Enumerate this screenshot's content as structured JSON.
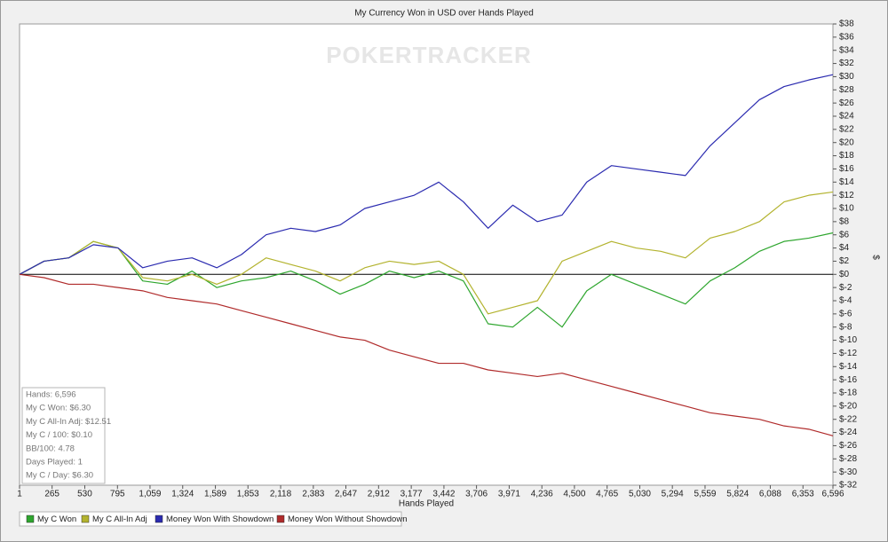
{
  "chart_data": {
    "type": "line",
    "title": "My Currency Won in USD over Hands Played",
    "watermark": "POKERTRACKER",
    "x_label": "Hands Played",
    "y_label": "$",
    "xlim": [
      1,
      6596
    ],
    "ylim": [
      -32,
      38
    ],
    "xticks": [
      1,
      265,
      530,
      795,
      {
        "value": 1059,
        "label": "1,059"
      },
      {
        "value": 1324,
        "label": "1,324"
      },
      {
        "value": 1589,
        "label": "1,589"
      },
      {
        "value": 1853,
        "label": "1,853"
      },
      {
        "value": 2118,
        "label": "2,118"
      },
      {
        "value": 2383,
        "label": "2,383"
      },
      {
        "value": 2647,
        "label": "2,647"
      },
      {
        "value": 2912,
        "label": "2,912"
      },
      {
        "value": 3177,
        "label": "3,177"
      },
      {
        "value": 3442,
        "label": "3,442"
      },
      {
        "value": 3706,
        "label": "3,706"
      },
      {
        "value": 3971,
        "label": "3,971"
      },
      {
        "value": 4236,
        "label": "4,236"
      },
      {
        "value": 4500,
        "label": "4,500"
      },
      {
        "value": 4765,
        "label": "4,765"
      },
      {
        "value": 5030,
        "label": "5,030"
      },
      {
        "value": 5294,
        "label": "5,294"
      },
      {
        "value": 5559,
        "label": "5,559"
      },
      {
        "value": 5824,
        "label": "5,824"
      },
      {
        "value": 6088,
        "label": "6,088"
      },
      {
        "value": 6353,
        "label": "6,353"
      },
      {
        "value": 6596,
        "label": "6,596"
      }
    ],
    "yticks": [
      {
        "value": -32,
        "label": "$-32"
      },
      {
        "value": -30,
        "label": "$-30"
      },
      {
        "value": -28,
        "label": "$-28"
      },
      {
        "value": -26,
        "label": "$-26"
      },
      {
        "value": -24,
        "label": "$-24"
      },
      {
        "value": -22,
        "label": "$-22"
      },
      {
        "value": -20,
        "label": "$-20"
      },
      {
        "value": -18,
        "label": "$-18"
      },
      {
        "value": -16,
        "label": "$-16"
      },
      {
        "value": -14,
        "label": "$-14"
      },
      {
        "value": -12,
        "label": "$-12"
      },
      {
        "value": -10,
        "label": "$-10"
      },
      {
        "value": -8,
        "label": "$-8"
      },
      {
        "value": -6,
        "label": "$-6"
      },
      {
        "value": -4,
        "label": "$-4"
      },
      {
        "value": -2,
        "label": "$-2"
      },
      {
        "value": 0,
        "label": "$0"
      },
      {
        "value": 2,
        "label": "$2"
      },
      {
        "value": 4,
        "label": "$4"
      },
      {
        "value": 6,
        "label": "$6"
      },
      {
        "value": 8,
        "label": "$8"
      },
      {
        "value": 10,
        "label": "$10"
      },
      {
        "value": 12,
        "label": "$12"
      },
      {
        "value": 14,
        "label": "$14"
      },
      {
        "value": 16,
        "label": "$16"
      },
      {
        "value": 18,
        "label": "$18"
      },
      {
        "value": 20,
        "label": "$20"
      },
      {
        "value": 22,
        "label": "$22"
      },
      {
        "value": 24,
        "label": "$24"
      },
      {
        "value": 26,
        "label": "$26"
      },
      {
        "value": 28,
        "label": "$28"
      },
      {
        "value": 30,
        "label": "$30"
      },
      {
        "value": 32,
        "label": "$32"
      },
      {
        "value": 34,
        "label": "$34"
      },
      {
        "value": 36,
        "label": "$36"
      },
      {
        "value": 38,
        "label": "$38"
      }
    ],
    "x": [
      1,
      200,
      400,
      600,
      800,
      1000,
      1200,
      1400,
      1600,
      1800,
      2000,
      2200,
      2400,
      2600,
      2800,
      3000,
      3200,
      3400,
      3600,
      3800,
      4000,
      4200,
      4400,
      4600,
      4800,
      5000,
      5200,
      5400,
      5600,
      5800,
      6000,
      6200,
      6400,
      6596
    ],
    "series": [
      {
        "name": "My C Won",
        "color": "#2ea62e",
        "values": [
          0,
          2,
          2.5,
          5,
          4,
          -1,
          -1.5,
          0.5,
          -2,
          -1,
          -0.5,
          0.5,
          -1,
          -3,
          -1.5,
          0.5,
          -0.5,
          0.5,
          -1,
          -7.5,
          -8,
          -5,
          -8,
          -2.5,
          0,
          -1.5,
          -3,
          -4.5,
          -1,
          1,
          3.5,
          5,
          5.5,
          6.3
        ]
      },
      {
        "name": "My C All-In Adj",
        "color": "#b3b32e",
        "values": [
          0,
          2,
          2.5,
          5,
          4,
          -0.5,
          -1,
          0,
          -1.5,
          0,
          2.5,
          1.5,
          0.5,
          -1,
          1,
          2,
          1.5,
          2,
          0,
          -6,
          -5,
          -4,
          2,
          3.5,
          5,
          4,
          3.5,
          2.5,
          5.5,
          6.5,
          8,
          11,
          12,
          12.5
        ]
      },
      {
        "name": "Money Won With Showdown",
        "color": "#2b2bb0",
        "values": [
          0,
          2,
          2.5,
          4.5,
          4,
          1,
          2,
          2.5,
          1,
          3,
          6,
          7,
          6.5,
          7.5,
          10,
          11,
          12,
          14,
          11,
          7,
          10.5,
          8,
          9,
          14,
          16.5,
          16,
          15.5,
          15,
          19.5,
          23,
          26.5,
          28.5,
          29.5,
          30.3
        ]
      },
      {
        "name": "Money Won Without Showdown",
        "color": "#b02b2b",
        "values": [
          0,
          -0.5,
          -1.5,
          -1.5,
          -2,
          -2.5,
          -3.5,
          -4,
          -4.5,
          -5.5,
          -6.5,
          -7.5,
          -8.5,
          -9.5,
          -10,
          -11.5,
          -12.5,
          -13.5,
          -13.5,
          -14.5,
          -15,
          -15.5,
          -15,
          -16,
          -17,
          -18,
          -19,
          -20,
          -21,
          -21.5,
          -22,
          -23,
          -23.5,
          -24.5
        ]
      }
    ],
    "stats": [
      "Hands: 6,596",
      "My C Won: $6.30",
      "My C All-In Adj: $12.51",
      "My C / 100: $0.10",
      "BB/100: 4.78",
      "Days Played: 1",
      "My C / Day: $6.30"
    ]
  }
}
